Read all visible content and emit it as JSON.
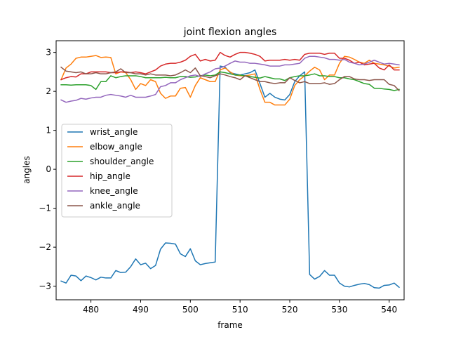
{
  "chart_data": {
    "type": "line",
    "title": "joint flexion angles",
    "xlabel": "frame",
    "ylabel": "angles",
    "xlim": [
      473,
      543
    ],
    "ylim": [
      -3.35,
      3.3
    ],
    "xticks": [
      480,
      490,
      500,
      510,
      520,
      530,
      540
    ],
    "xtick_labels": [
      "480",
      "490",
      "500",
      "510",
      "520",
      "530",
      "540"
    ],
    "yticks": [
      -3,
      -2,
      -1,
      0,
      1,
      2,
      3
    ],
    "ytick_labels": [
      "−3",
      "−2",
      "−1",
      "0",
      "1",
      "2",
      "3"
    ],
    "grid": false,
    "legend_position": "center-left",
    "x": [
      474,
      475,
      476,
      477,
      478,
      479,
      480,
      481,
      482,
      483,
      484,
      485,
      486,
      487,
      488,
      489,
      490,
      491,
      492,
      493,
      494,
      495,
      496,
      497,
      498,
      499,
      500,
      501,
      502,
      503,
      504,
      505,
      506,
      507,
      508,
      509,
      510,
      511,
      512,
      513,
      514,
      515,
      516,
      517,
      518,
      519,
      520,
      521,
      522,
      523,
      524,
      525,
      526,
      527,
      528,
      529,
      530,
      531,
      532,
      533,
      534,
      535,
      536,
      537,
      538,
      539,
      540,
      541,
      542
    ],
    "series": [
      {
        "name": "wrist_angle",
        "color": "#1f77b4",
        "values": [
          -2.87,
          -2.92,
          -2.72,
          -2.74,
          -2.86,
          -2.74,
          -2.78,
          -2.84,
          -2.77,
          -2.79,
          -2.79,
          -2.6,
          -2.65,
          -2.64,
          -2.5,
          -2.3,
          -2.45,
          -2.41,
          -2.55,
          -2.47,
          -2.05,
          -1.89,
          -1.9,
          -1.92,
          -2.17,
          -2.24,
          -2.04,
          -2.35,
          -2.45,
          -2.42,
          -2.4,
          -2.38,
          2.65,
          2.62,
          2.48,
          2.45,
          2.42,
          2.45,
          2.48,
          2.55,
          2.2,
          1.85,
          1.95,
          1.85,
          1.8,
          1.78,
          1.92,
          2.25,
          2.4,
          2.5,
          -2.7,
          -2.82,
          -2.75,
          -2.6,
          -2.72,
          -2.72,
          -2.92,
          -3.0,
          -3.02,
          -2.98,
          -2.95,
          -2.93,
          -2.96,
          -3.04,
          -3.05,
          -2.98,
          -2.97,
          -2.92,
          -3.03
        ]
      },
      {
        "name": "elbow_angle",
        "color": "#ff7f0e",
        "values": [
          2.3,
          2.6,
          2.7,
          2.85,
          2.88,
          2.88,
          2.9,
          2.92,
          2.87,
          2.88,
          2.87,
          2.45,
          2.5,
          2.48,
          2.3,
          2.05,
          2.2,
          2.15,
          2.3,
          2.25,
          1.95,
          1.82,
          1.88,
          1.88,
          2.08,
          2.1,
          1.85,
          2.15,
          2.35,
          2.3,
          2.25,
          2.25,
          2.55,
          2.6,
          2.5,
          2.42,
          2.4,
          2.4,
          2.42,
          2.45,
          2.05,
          1.72,
          1.72,
          1.65,
          1.65,
          1.65,
          1.8,
          2.15,
          2.3,
          2.4,
          2.52,
          2.62,
          2.55,
          2.3,
          2.42,
          2.42,
          2.72,
          2.9,
          2.88,
          2.82,
          2.75,
          2.72,
          2.8,
          2.72,
          2.7,
          2.68,
          2.65,
          2.6,
          2.62
        ]
      },
      {
        "name": "shoulder_angle",
        "color": "#2ca02c",
        "values": [
          2.17,
          2.17,
          2.16,
          2.17,
          2.17,
          2.17,
          2.15,
          2.05,
          2.25,
          2.25,
          2.4,
          2.35,
          2.38,
          2.4,
          2.4,
          2.4,
          2.38,
          2.35,
          2.35,
          2.35,
          2.35,
          2.36,
          2.35,
          2.35,
          2.38,
          2.38,
          2.36,
          2.37,
          2.4,
          2.42,
          2.4,
          2.42,
          2.5,
          2.48,
          2.45,
          2.42,
          2.42,
          2.4,
          2.38,
          2.36,
          2.34,
          2.38,
          2.35,
          2.32,
          2.32,
          2.28,
          2.35,
          2.38,
          2.4,
          2.4,
          2.42,
          2.45,
          2.4,
          2.4,
          2.38,
          2.38,
          2.35,
          2.35,
          2.32,
          2.3,
          2.25,
          2.2,
          2.18,
          2.08,
          2.08,
          2.06,
          2.05,
          2.02,
          2.05
        ]
      },
      {
        "name": "hip_angle",
        "color": "#d62728",
        "values": [
          2.3,
          2.35,
          2.38,
          2.37,
          2.45,
          2.45,
          2.5,
          2.5,
          2.5,
          2.5,
          2.48,
          2.48,
          2.5,
          2.5,
          2.48,
          2.5,
          2.48,
          2.45,
          2.5,
          2.55,
          2.65,
          2.7,
          2.72,
          2.72,
          2.75,
          2.8,
          2.9,
          2.95,
          2.78,
          2.82,
          2.78,
          2.8,
          3.0,
          2.92,
          2.88,
          2.95,
          3.0,
          3.0,
          2.98,
          2.95,
          2.9,
          2.78,
          2.8,
          2.8,
          2.8,
          2.82,
          2.8,
          2.82,
          2.8,
          2.95,
          2.98,
          2.98,
          2.98,
          2.95,
          2.98,
          2.98,
          2.85,
          2.85,
          2.8,
          2.72,
          2.75,
          2.68,
          2.7,
          2.72,
          2.6,
          2.55,
          2.68,
          2.55,
          2.55
        ]
      },
      {
        "name": "knee_angle",
        "color": "#9467bd",
        "values": [
          1.78,
          1.72,
          1.75,
          1.77,
          1.82,
          1.8,
          1.83,
          1.85,
          1.85,
          1.9,
          1.92,
          1.9,
          1.88,
          1.85,
          1.9,
          1.85,
          1.85,
          1.85,
          1.88,
          1.92,
          2.12,
          2.15,
          2.22,
          2.22,
          2.3,
          2.35,
          2.4,
          2.42,
          2.38,
          2.45,
          2.5,
          2.58,
          2.6,
          2.65,
          2.72,
          2.78,
          2.75,
          2.75,
          2.72,
          2.72,
          2.7,
          2.68,
          2.65,
          2.65,
          2.65,
          2.68,
          2.68,
          2.7,
          2.72,
          2.85,
          2.9,
          2.9,
          2.88,
          2.86,
          2.82,
          2.82,
          2.8,
          2.82,
          2.75,
          2.72,
          2.68,
          2.7,
          2.75,
          2.8,
          2.75,
          2.7,
          2.72,
          2.7,
          2.68
        ]
      },
      {
        "name": "ankle_angle",
        "color": "#8c564b",
        "values": [
          2.62,
          2.52,
          2.5,
          2.48,
          2.5,
          2.45,
          2.45,
          2.48,
          2.45,
          2.45,
          2.48,
          2.5,
          2.58,
          2.48,
          2.48,
          2.45,
          2.45,
          2.42,
          2.45,
          2.42,
          2.42,
          2.42,
          2.4,
          2.42,
          2.48,
          2.55,
          2.48,
          2.6,
          2.4,
          2.38,
          2.35,
          2.4,
          2.45,
          2.42,
          2.38,
          2.35,
          2.3,
          2.4,
          2.35,
          2.3,
          2.25,
          2.25,
          2.22,
          2.2,
          2.22,
          2.22,
          2.35,
          2.28,
          2.22,
          2.25,
          2.2,
          2.2,
          2.2,
          2.22,
          2.18,
          2.2,
          2.3,
          2.38,
          2.38,
          2.32,
          2.3,
          2.3,
          2.28,
          2.3,
          2.3,
          2.3,
          2.18,
          2.15,
          2.02
        ]
      }
    ]
  }
}
